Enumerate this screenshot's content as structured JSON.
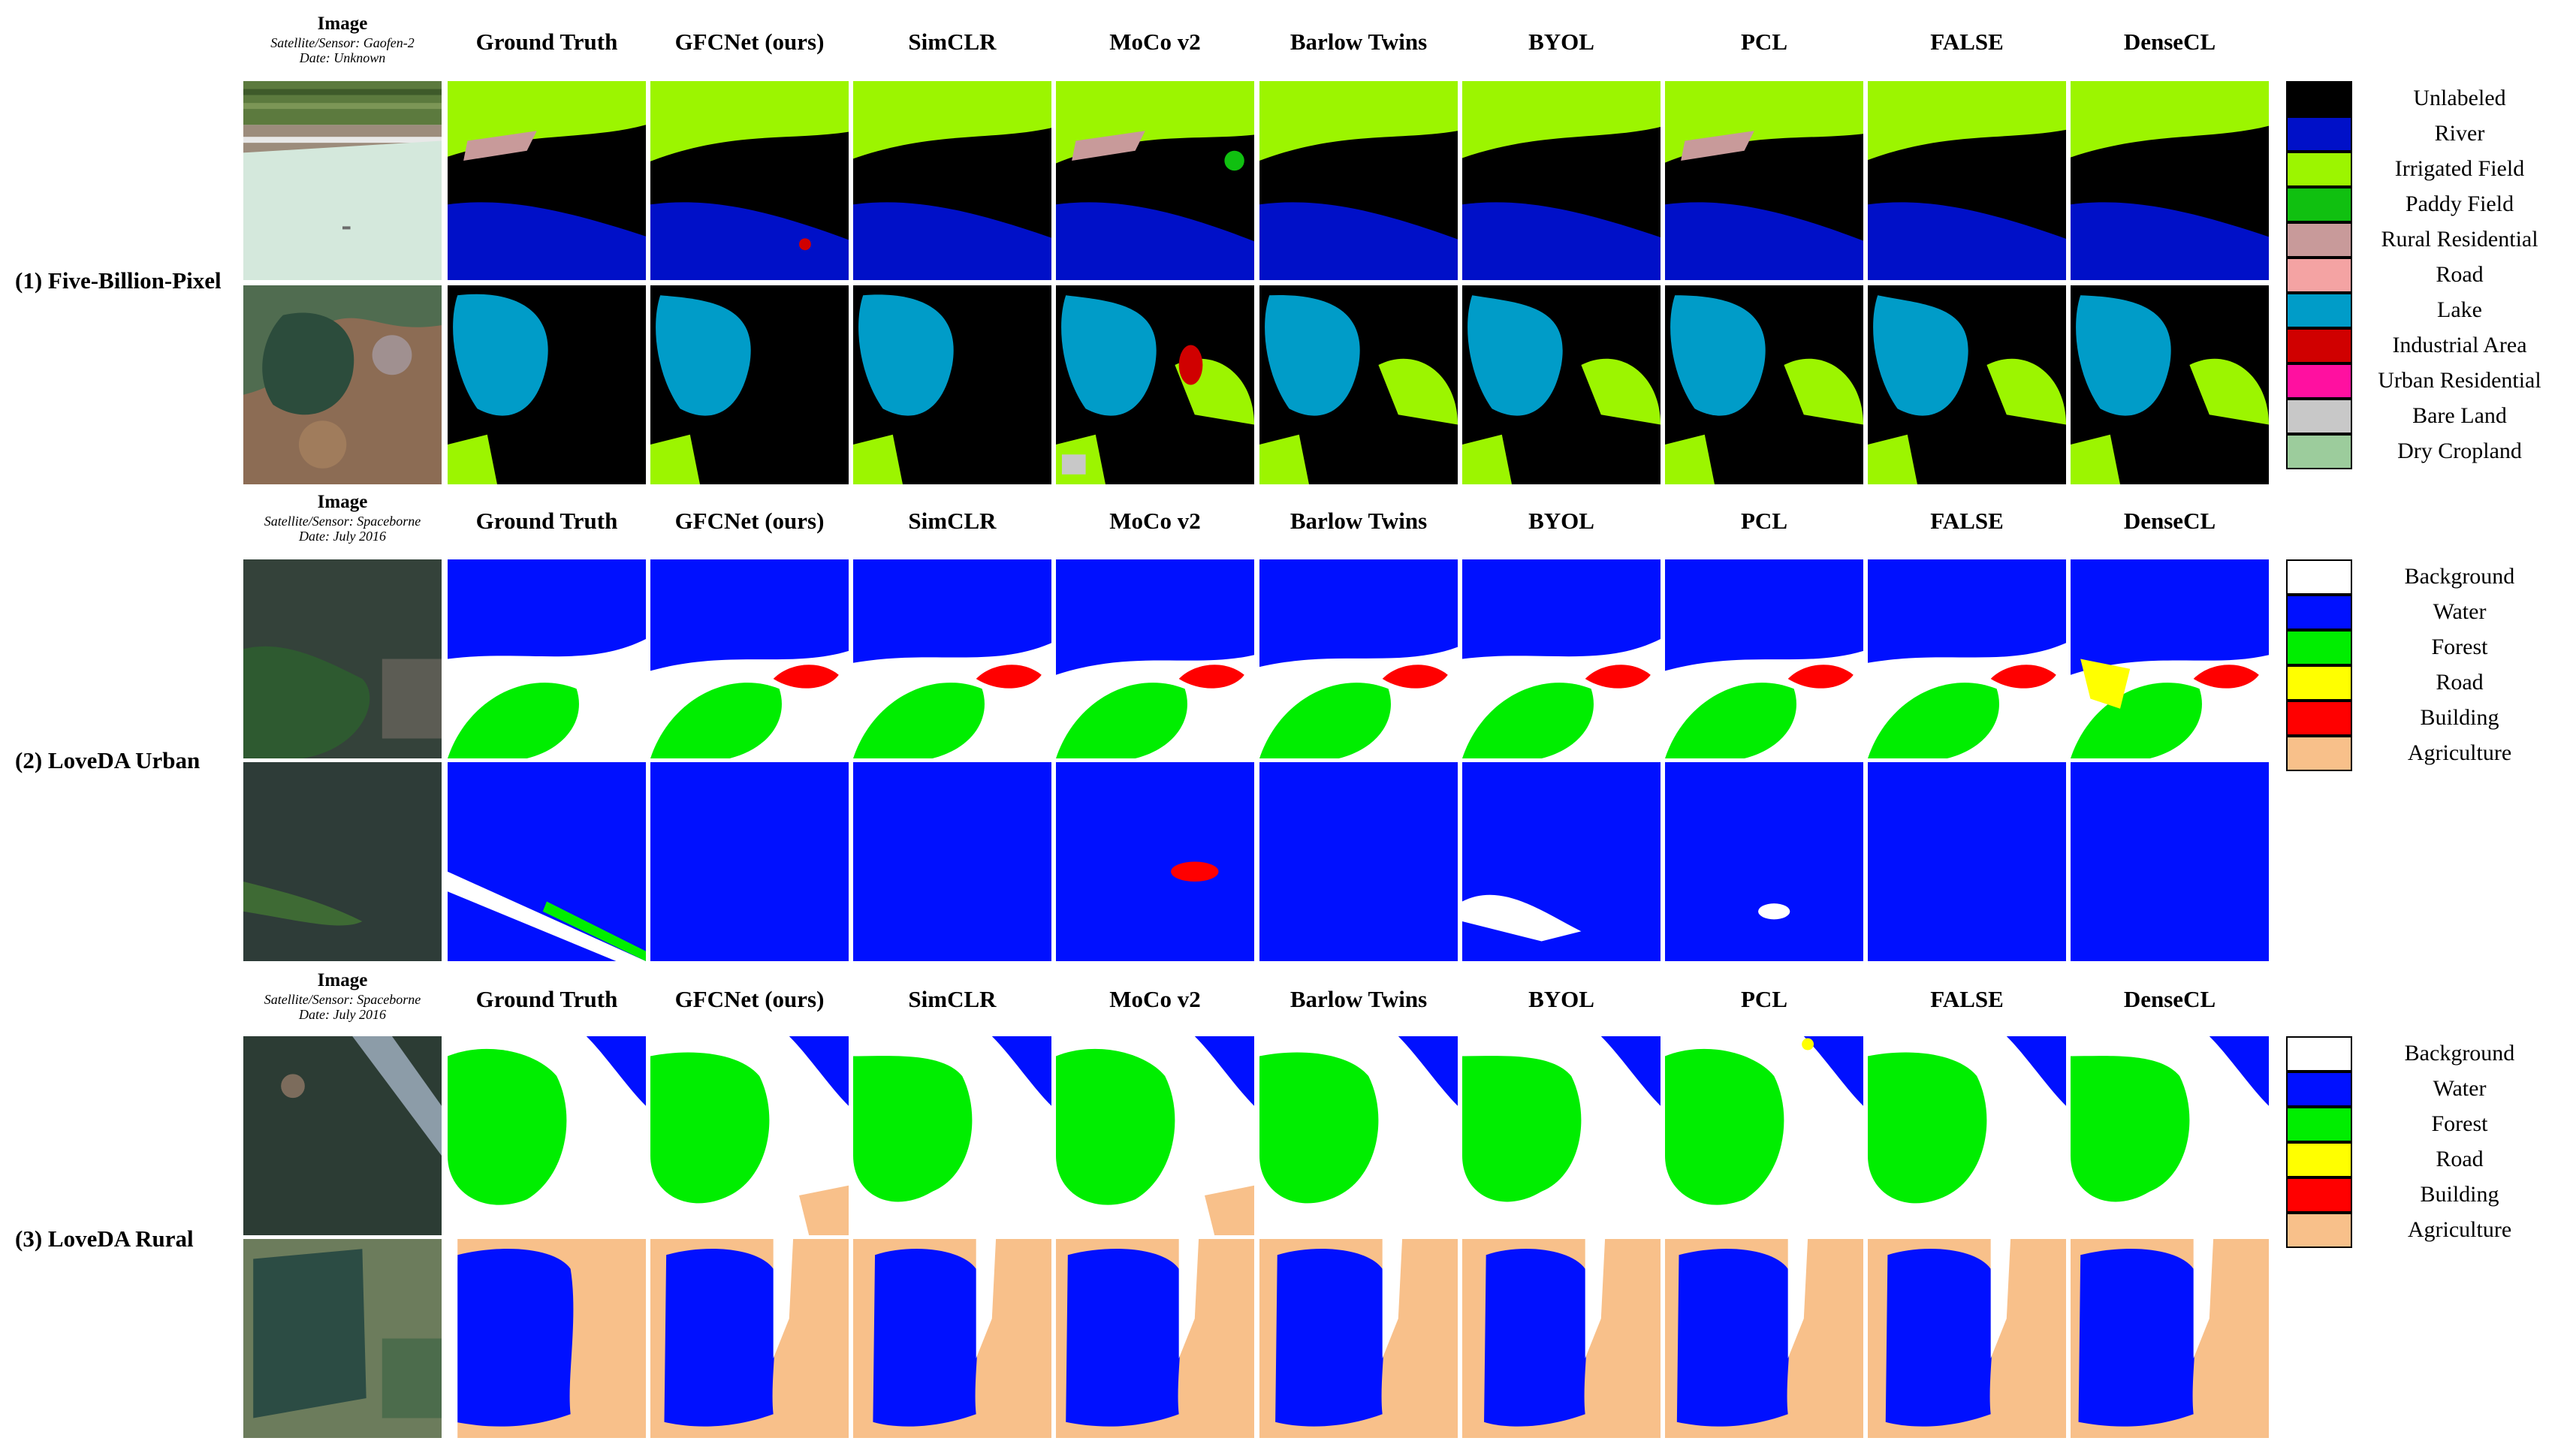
{
  "columns": [
    "Ground  Truth",
    "GFCNet (ours)",
    "SimCLR",
    "MoCo v2",
    "Barlow Twins",
    "BYOL",
    "PCL",
    "FALSE",
    "DenseCL"
  ],
  "sections": [
    {
      "label": "(1) Five-Billion-Pixel",
      "image_title": "Image",
      "meta1": "Satellite/Sensor: Gaofen-2",
      "meta2": "Date: Unknown"
    },
    {
      "label": "(2) LoveDA Urban",
      "image_title": "Image",
      "meta1": "Satellite/Sensor: Spaceborne",
      "meta2": "Date: July 2016"
    },
    {
      "label": "(3) LoveDA Rural",
      "image_title": "Image",
      "meta1": "Satellite/Sensor: Spaceborne",
      "meta2": "Date: July 2016"
    }
  ],
  "legends": [
    [
      {
        "label": "Unlabeled",
        "color": "#000000"
      },
      {
        "label": "River",
        "color": "#0010c8"
      },
      {
        "label": "Irrigated Field",
        "color": "#9cf500"
      },
      {
        "label": "Paddy Field",
        "color": "#10c010"
      },
      {
        "label": "Rural Residential",
        "color": "#c89a9a"
      },
      {
        "label": "Road",
        "color": "#f4a3a3"
      },
      {
        "label": "Lake",
        "color": "#009cc8"
      },
      {
        "label": "Industrial Area",
        "color": "#d00000"
      },
      {
        "label": "Urban Residential",
        "color": "#ff10a0"
      },
      {
        "label": "Bare Land",
        "color": "#c8c8c8"
      },
      {
        "label": "Dry Cropland",
        "color": "#9ccc9c"
      }
    ],
    [
      {
        "label": "Background",
        "color": "#ffffff"
      },
      {
        "label": "Water",
        "color": "#0010ff"
      },
      {
        "label": "Forest",
        "color": "#00ee00"
      },
      {
        "label": "Road",
        "color": "#ffff00"
      },
      {
        "label": "Building",
        "color": "#ff0000"
      },
      {
        "label": "Agriculture",
        "color": "#f8c08a"
      }
    ],
    [
      {
        "label": "Background",
        "color": "#ffffff"
      },
      {
        "label": "Water",
        "color": "#0010ff"
      },
      {
        "label": "Forest",
        "color": "#00ee00"
      },
      {
        "label": "Road",
        "color": "#ffff00"
      },
      {
        "label": "Building",
        "color": "#ff0000"
      },
      {
        "label": "Agriculture",
        "color": "#f8c08a"
      }
    ]
  ]
}
